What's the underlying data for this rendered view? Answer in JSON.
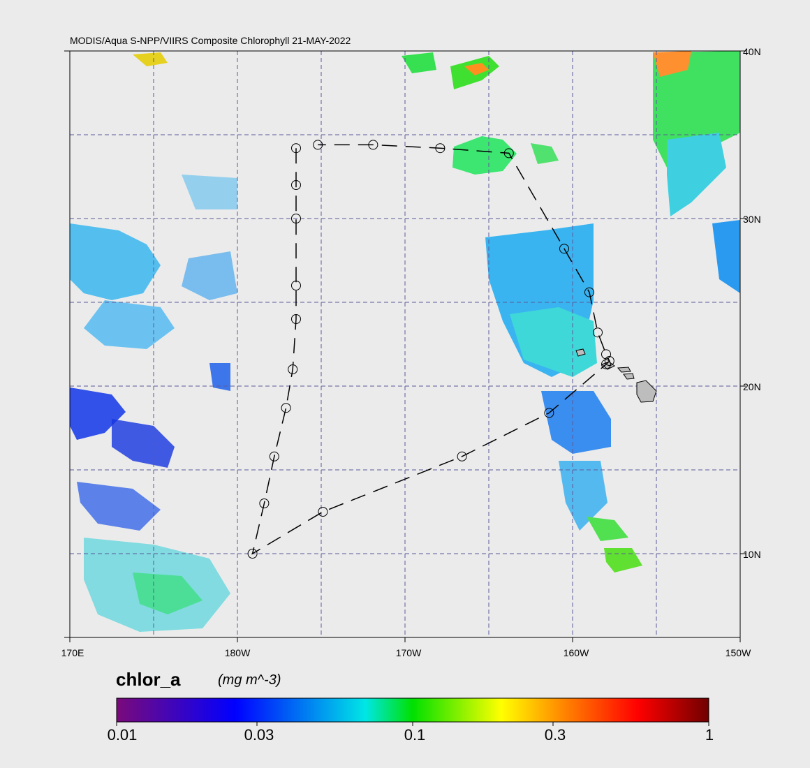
{
  "title": "MODIS/Aqua S-NPP/VIIRS Composite Chlorophyll 21-MAY-2022",
  "axes": {
    "lon_labels": [
      "170E",
      "180W",
      "170W",
      "160W",
      "150W"
    ],
    "lat_labels": [
      "40N",
      "30N",
      "20N",
      "10N"
    ]
  },
  "colorbar": {
    "variable": "chlor_a",
    "units": "(mg m^-3)",
    "scale": "log",
    "tick_labels": [
      "0.01",
      "0.03",
      "0.1",
      "0.3",
      "1"
    ],
    "colors": [
      "#7a0a7a",
      "#0000ff",
      "#00e0e0",
      "#00e000",
      "#ffff00",
      "#ff8000",
      "#ff0000",
      "#700000"
    ]
  },
  "track": {
    "waypoints_lonlat": [
      [
        -176.5,
        34.2
      ],
      [
        -176.5,
        32.0
      ],
      [
        -176.5,
        30.0
      ],
      [
        -176.5,
        26.0
      ],
      [
        -176.5,
        24.0
      ],
      [
        -176.7,
        21.0
      ],
      [
        -177.1,
        18.7
      ],
      [
        -177.8,
        15.8
      ],
      [
        -178.4,
        13.0
      ],
      [
        -179.1,
        10.0
      ],
      [
        -174.9,
        12.5
      ],
      [
        -166.6,
        15.8
      ],
      [
        -161.4,
        18.4
      ],
      [
        -158.0,
        21.3
      ],
      [
        -157.8,
        21.5
      ],
      [
        -158.0,
        21.9
      ],
      [
        -158.5,
        23.2
      ],
      [
        -159.0,
        25.6
      ],
      [
        -160.5,
        28.2
      ],
      [
        -163.8,
        33.9
      ],
      [
        -167.9,
        34.2
      ],
      [
        -171.9,
        34.4
      ],
      [
        -175.2,
        34.4
      ]
    ],
    "line_color": "#000000"
  },
  "land": {
    "name": "Hawaiian Islands",
    "color": "#bdbdbd"
  }
}
